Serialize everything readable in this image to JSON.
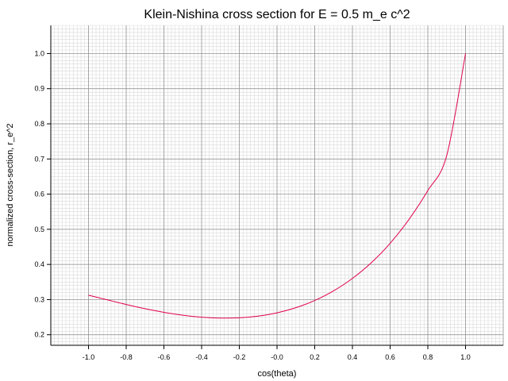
{
  "chart_data": {
    "type": "line",
    "title": "Klein-Nishina cross section for E = 0.5 m_e c^2",
    "xlabel": "cos(theta)",
    "ylabel": "normalized cross-section, r_e^2",
    "xlim": [
      -1.2,
      1.2
    ],
    "ylim": [
      0.17,
      1.08
    ],
    "x_ticks": [
      -1.0,
      -0.8,
      -0.6,
      -0.4,
      -0.2,
      0.0,
      0.2,
      0.4,
      0.6,
      0.8,
      1.0
    ],
    "x_tick_labels": [
      "-1.0",
      "-0.8",
      "-0.6",
      "-0.4",
      "-0.2",
      "-0.0",
      "0.2",
      "0.4",
      "0.6",
      "0.8",
      "1.0"
    ],
    "y_ticks": [
      0.2,
      0.3,
      0.4,
      0.5,
      0.6,
      0.7,
      0.8,
      0.9,
      1.0
    ],
    "y_tick_labels": [
      "0.2",
      "0.3",
      "0.4",
      "0.5",
      "0.6",
      "0.7",
      "0.8",
      "0.9",
      "1.0"
    ],
    "grid": true,
    "series": [
      {
        "color": "#e0004a",
        "x": [
          -1.0,
          -0.9,
          -0.8,
          -0.7,
          -0.6,
          -0.5,
          -0.4,
          -0.3,
          -0.2,
          -0.1,
          0.0,
          0.1,
          0.2,
          0.3,
          0.4,
          0.5,
          0.6,
          0.7,
          0.8,
          0.9,
          1.0
        ],
        "y": [
          0.3125,
          0.2992,
          0.2861,
          0.2741,
          0.2638,
          0.2556,
          0.25,
          0.2474,
          0.2482,
          0.253,
          0.2623,
          0.2769,
          0.2974,
          0.3248,
          0.3602,
          0.4048,
          0.4601,
          0.528,
          0.6103,
          0.7095,
          1.0
        ]
      }
    ]
  }
}
